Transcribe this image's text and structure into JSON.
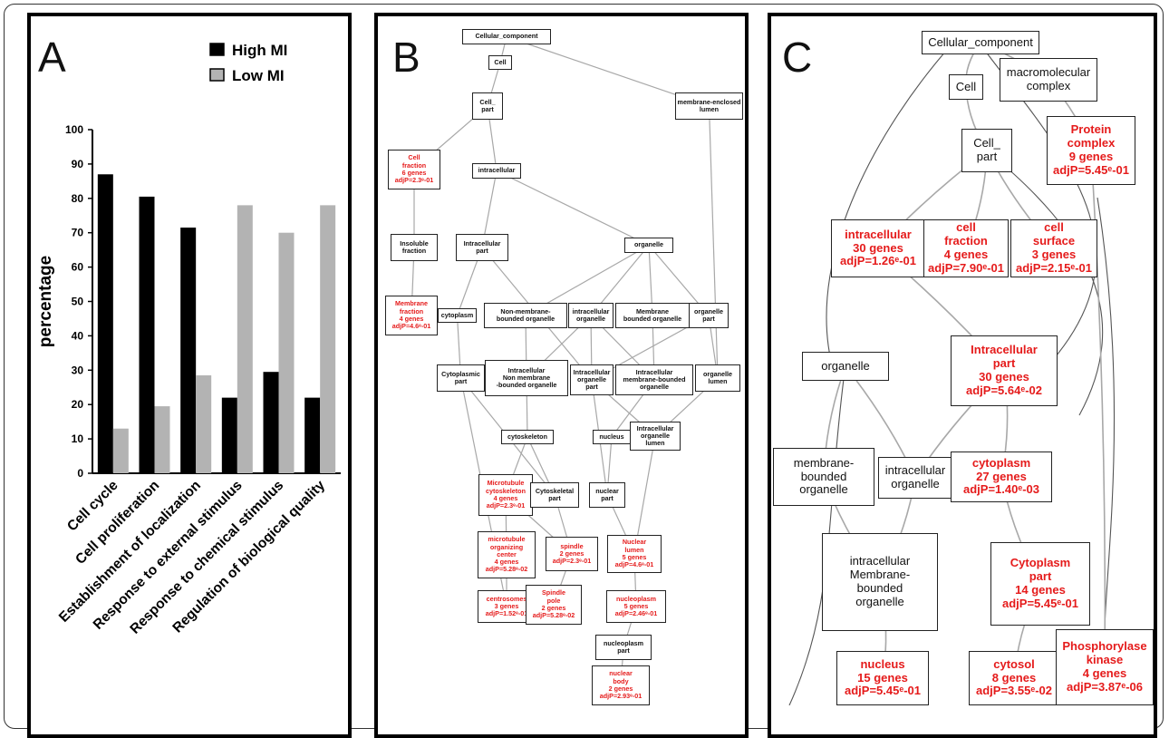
{
  "panel_labels": {
    "a": "A",
    "b": "B",
    "c": "C"
  },
  "colors": {
    "high": "#000000",
    "low": "#b3b3b3",
    "enriched": "#e51b1b",
    "edge": "#a8a8a8"
  },
  "chart_data": {
    "type": "bar",
    "categories": [
      "Cell cycle",
      "Cell proliferation",
      "Establishment of localization",
      "Response to external stimulus",
      "Response to chemical stimulus",
      "Regulation of biological quality"
    ],
    "series": [
      {
        "name": "High MI",
        "values": [
          87,
          80.5,
          71.5,
          22,
          29.5,
          22
        ]
      },
      {
        "name": "Low MI",
        "values": [
          13,
          19.5,
          28.5,
          78,
          70,
          78
        ]
      }
    ],
    "ylabel": "percentage",
    "ylim": [
      0,
      100
    ],
    "yticks": [
      "0",
      "10",
      "20",
      "30",
      "40",
      "50",
      "60",
      "70",
      "80",
      "90",
      "100"
    ],
    "legend": "top-right"
  },
  "graph_b": {
    "nodes": [
      {
        "id": "b_cc",
        "text": "Cellular_component",
        "red": false
      },
      {
        "id": "b_cell",
        "text": "Cell",
        "red": false
      },
      {
        "id": "b_cellpart",
        "text": "Cell_\npart",
        "red": false
      },
      {
        "id": "b_mel",
        "text": "membrane-enclosed\nlumen",
        "red": false
      },
      {
        "id": "b_cf",
        "text": "Cell\nfraction\n6 genes\nadjP=2.3ᵉ-01",
        "red": true
      },
      {
        "id": "b_intra",
        "text": "intracellular",
        "red": false
      },
      {
        "id": "b_insol",
        "text": "Insoluble\nfraction",
        "red": false
      },
      {
        "id": "b_intrapart",
        "text": "Intracellular\npart",
        "red": false
      },
      {
        "id": "b_org",
        "text": "organelle",
        "red": false
      },
      {
        "id": "b_mf",
        "text": "Membrane\nfraction\n4 genes\nadjP=4.6ᵉ-01",
        "red": true
      },
      {
        "id": "b_cyto",
        "text": "cytoplasm",
        "red": false
      },
      {
        "id": "b_nmbo",
        "text": "Non-membrane-\nbounded organelle",
        "red": false
      },
      {
        "id": "b_io",
        "text": "intracellular\norganelle",
        "red": false
      },
      {
        "id": "b_mbo",
        "text": "Membrane\nbounded organelle",
        "red": false
      },
      {
        "id": "b_orgpart",
        "text": "organelle\npart",
        "red": false
      },
      {
        "id": "b_cytopart",
        "text": "Cytoplasmic\npart",
        "red": false
      },
      {
        "id": "b_inmbo",
        "text": "Intracellular\nNon membrane\n-bounded organelle",
        "red": false
      },
      {
        "id": "b_iop",
        "text": "Intracellular\norganelle\npart",
        "red": false
      },
      {
        "id": "b_imbo",
        "text": "Intracellular\nmembrane-bounded\norganelle",
        "red": false
      },
      {
        "id": "b_orglumen",
        "text": "organelle\nlumen",
        "red": false
      },
      {
        "id": "b_cytosk",
        "text": "cytoskeleton",
        "red": false
      },
      {
        "id": "b_nucleus",
        "text": "nucleus",
        "red": false
      },
      {
        "id": "b_iol",
        "text": "Intracellular\norganelle\nlumen",
        "red": false
      },
      {
        "id": "b_mtc",
        "text": "Microtubule\ncytoskeleton\n4 genes\nadjP=2.3ᵉ-01",
        "red": true
      },
      {
        "id": "b_cskpart",
        "text": "Cytoskeletal\npart",
        "red": false
      },
      {
        "id": "b_nucpart",
        "text": "nuclear\npart",
        "red": false
      },
      {
        "id": "b_moc",
        "text": "microtubule\norganizing\ncenter\n4 genes\nadjP=5.28ᵉ-02",
        "red": true
      },
      {
        "id": "b_spindle",
        "text": "spindle\n2 genes\nadjP=2.3ᵉ-01",
        "red": true
      },
      {
        "id": "b_nl",
        "text": "Nuclear\nlumen\n5 genes\nadjP=4.6ᵉ-01",
        "red": true
      },
      {
        "id": "b_centro",
        "text": "centrosomes\n3 genes\nadjP=1.52ᵉ-01",
        "red": true
      },
      {
        "id": "b_sp",
        "text": "Spindle\npole\n2 genes\nadjP=5.28ᵉ-02",
        "red": true
      },
      {
        "id": "b_np",
        "text": "nucleoplasm\n5 genes\nadjP=2.46ᵉ-01",
        "red": true
      },
      {
        "id": "b_nppart",
        "text": "nucleoplasm\npart",
        "red": false
      },
      {
        "id": "b_nb",
        "text": "nuclear\nbody\n2 genes\nadjP=2.93ᵉ-01",
        "red": true
      }
    ]
  },
  "graph_c": {
    "nodes": [
      {
        "id": "c_cc",
        "text": "Cellular_component",
        "red": false
      },
      {
        "id": "c_cell",
        "text": "Cell",
        "red": false
      },
      {
        "id": "c_mc",
        "text": "macromolecular\ncomplex",
        "red": false
      },
      {
        "id": "c_pc",
        "text": "Protein\ncomplex\n9 genes\nadjP=5.45ᵉ-01",
        "red": true
      },
      {
        "id": "c_cellpart",
        "text": "Cell_\npart",
        "red": false
      },
      {
        "id": "c_intra",
        "text": "intracellular\n30 genes\nadjP=1.26ᵉ-01",
        "red": true
      },
      {
        "id": "c_cf",
        "text": "cell\nfraction\n4 genes\nadjP=7.90ᵉ-01",
        "red": true
      },
      {
        "id": "c_cs",
        "text": "cell\nsurface\n3 genes\nadjP=2.15ᵉ-01",
        "red": true
      },
      {
        "id": "c_org",
        "text": "organelle",
        "red": false
      },
      {
        "id": "c_ip",
        "text": "Intracellular\npart\n30 genes\nadjP=5.64ᵉ-02",
        "red": true
      },
      {
        "id": "c_mbo",
        "text": "membrane-\nbounded\norganelle",
        "red": false
      },
      {
        "id": "c_io",
        "text": "intracellular\norganelle",
        "red": false
      },
      {
        "id": "c_cyto",
        "text": "cytoplasm\n27 genes\nadjP=1.40ᵉ-03",
        "red": true
      },
      {
        "id": "c_imbo",
        "text": "intracellular\nMembrane-\nbounded\norganelle",
        "red": false
      },
      {
        "id": "c_cp",
        "text": "Cytoplasm\npart\n14 genes\nadjP=5.45ᵉ-01",
        "red": true
      },
      {
        "id": "c_nucleus",
        "text": "nucleus\n15 genes\nadjP=5.45ᵉ-01",
        "red": true
      },
      {
        "id": "c_cytosol",
        "text": "cytosol\n8 genes\nadjP=3.55ᵉ-02",
        "red": true
      },
      {
        "id": "c_pk",
        "text": "Phosphorylase\nkinase\n4 genes\nadjP=3.87ᵉ-06",
        "red": true
      }
    ]
  }
}
